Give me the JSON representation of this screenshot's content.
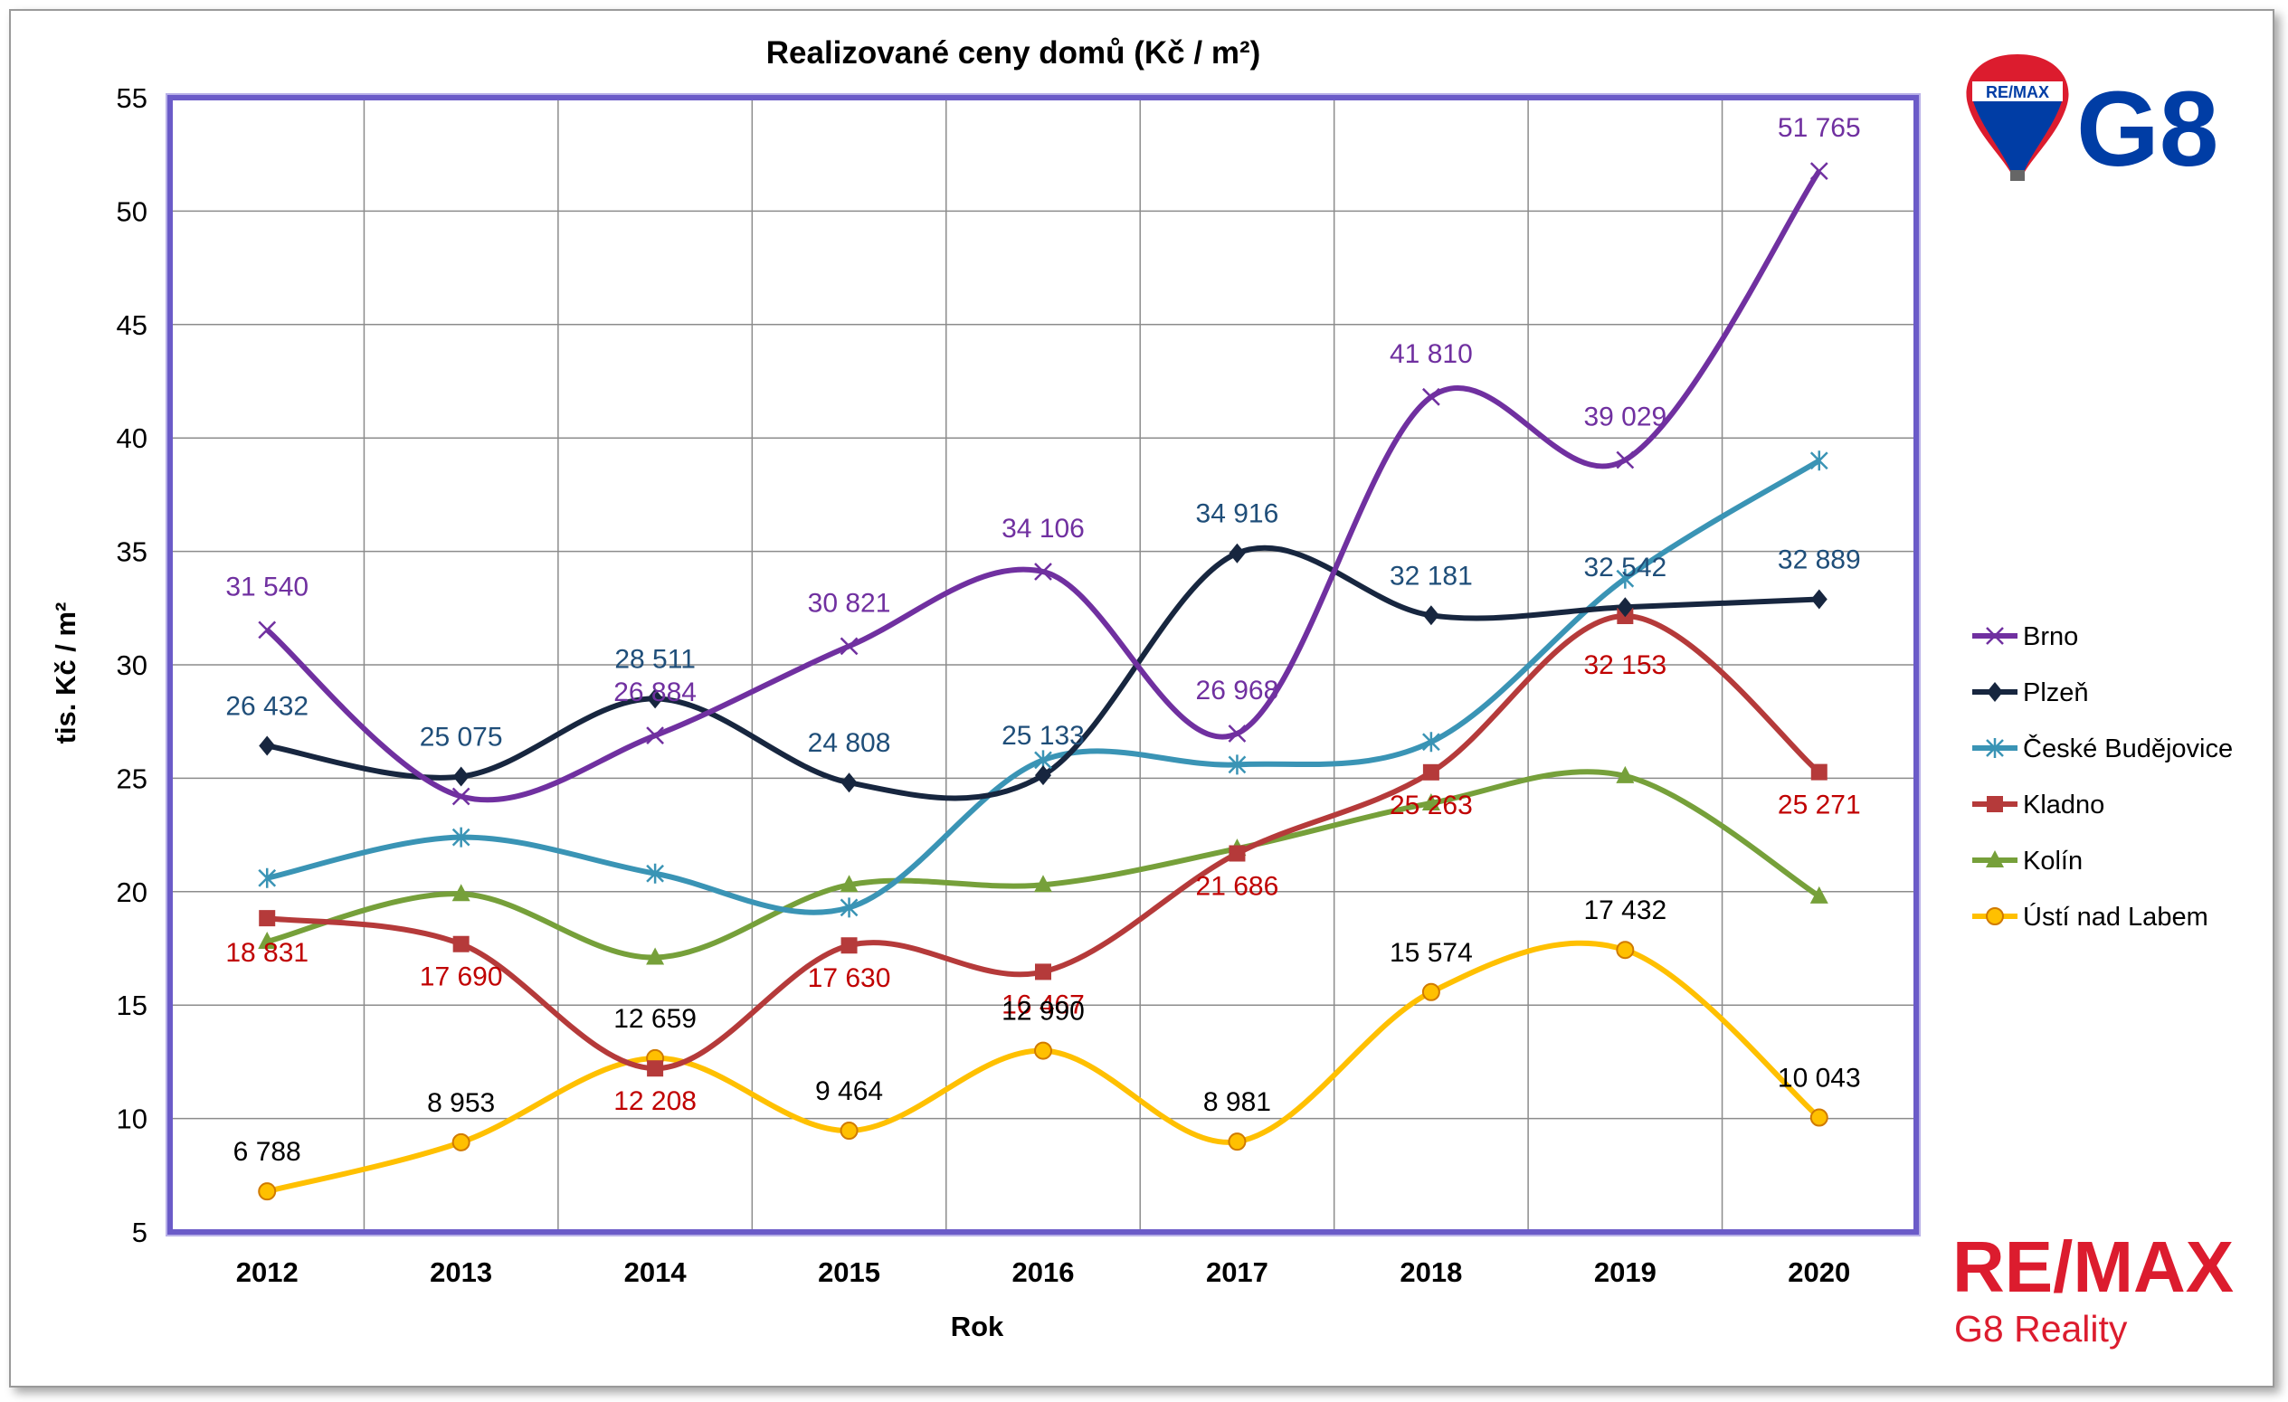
{
  "chart_data": {
    "type": "line",
    "title": "Realizované ceny domů (Kč / m²)",
    "xlabel": "Rok",
    "ylabel": "tis. Kč / m²",
    "categories": [
      "2012",
      "2013",
      "2014",
      "2015",
      "2016",
      "2017",
      "2018",
      "2019",
      "2020"
    ],
    "ylim": [
      5,
      55
    ],
    "yticks": [
      5,
      10,
      15,
      20,
      25,
      30,
      35,
      40,
      45,
      50,
      55
    ],
    "grid": true,
    "legend_position": "right",
    "series": [
      {
        "name": "Brno",
        "color": "#7030A0",
        "marker": "x",
        "values": [
          31.54,
          24.2,
          26.884,
          30.821,
          34.106,
          26.968,
          41.81,
          39.029,
          51.765
        ],
        "labels": [
          "31 540",
          "",
          "26 884",
          "30 821",
          "34 106",
          "26 968",
          "41 810",
          "39 029",
          "51 765"
        ],
        "label_color": "#7030A0"
      },
      {
        "name": "Plzeň",
        "color": "#17263F",
        "marker": "diamond",
        "values": [
          26.432,
          25.075,
          28.511,
          24.808,
          25.133,
          34.916,
          32.181,
          32.542,
          32.889
        ],
        "labels": [
          "26 432",
          "25 075",
          "28 511",
          "24 808",
          "25 133",
          "34 916",
          "32 181",
          "32 542",
          "32 889"
        ],
        "label_color": "#1F4E79"
      },
      {
        "name": "České Budějovice",
        "color": "#3A94B5",
        "marker": "star",
        "values": [
          20.6,
          22.4,
          20.8,
          19.3,
          25.8,
          25.6,
          26.6,
          33.8,
          39.0
        ],
        "labels": [
          "",
          "",
          "",
          "",
          "",
          "",
          "",
          "",
          ""
        ],
        "label_color": "#3A94B5"
      },
      {
        "name": "Kladno",
        "color": "#B53A3A",
        "marker": "square",
        "values": [
          18.831,
          17.69,
          12.208,
          17.63,
          16.467,
          21.686,
          25.263,
          32.153,
          25.271
        ],
        "labels": [
          "18 831",
          "17 690",
          "12 208",
          "17 630",
          "16 467",
          "21 686",
          "25 263",
          "32 153",
          "25 271"
        ],
        "label_color": "#C00000"
      },
      {
        "name": "Kolín",
        "color": "#76A03A",
        "marker": "triangle",
        "values": [
          17.8,
          19.9,
          17.1,
          20.3,
          20.3,
          21.9,
          23.9,
          25.1,
          19.8
        ],
        "labels": [
          "",
          "",
          "",
          "",
          "",
          "",
          "",
          "",
          ""
        ],
        "label_color": "#76A03A"
      },
      {
        "name": "Ústí nad Labem",
        "color": "#FFC000",
        "marker": "circle",
        "values": [
          6.788,
          8.953,
          12.659,
          9.464,
          12.99,
          8.981,
          15.574,
          17.432,
          10.043
        ],
        "labels": [
          "6 788",
          "8 953",
          "12 659",
          "9 464",
          "12 990",
          "8 981",
          "15 574",
          "17 432",
          "10 043"
        ],
        "label_color": "#000000"
      }
    ]
  },
  "logo": {
    "badge_text": "RE/MAX",
    "badge_brand": "G8",
    "bottom_brand": "RE/MAX",
    "bottom_sub": "G8 Reality",
    "colors": {
      "red": "#DC1C2E",
      "blue": "#003DA5"
    }
  }
}
